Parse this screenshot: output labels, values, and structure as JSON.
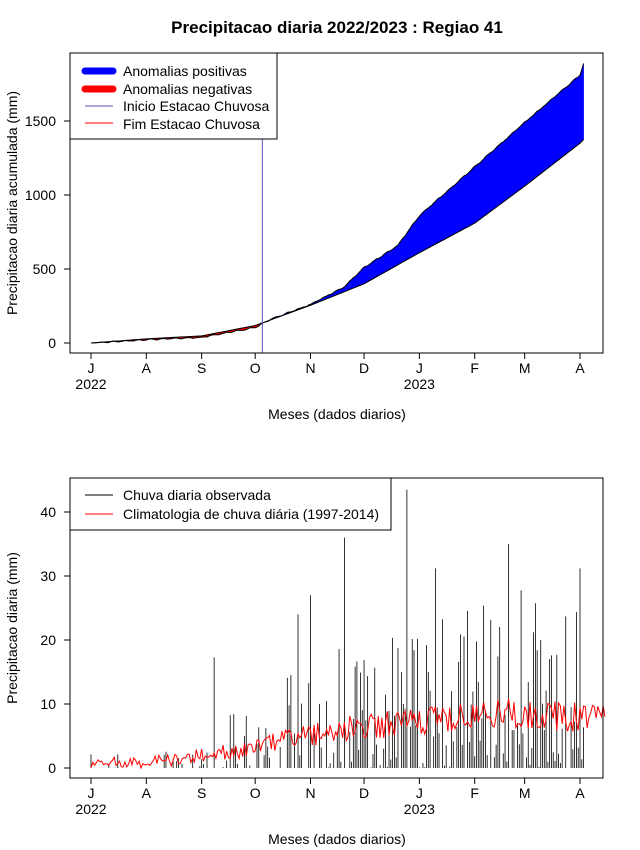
{
  "title": "Precipitacao diaria 2022/2023 : Regiao 41",
  "months": [
    "J",
    "A",
    "S",
    "O",
    "N",
    "D",
    "J",
    "F",
    "M",
    "A"
  ],
  "years": [
    "2022",
    "2023"
  ],
  "chart_data": [
    {
      "type": "area",
      "xlabel": "Meses (dados diarios)",
      "ylabel": "Precipitacao diaria acumulada (mm)",
      "ylim": [
        0,
        1850
      ],
      "yticks": [
        0,
        500,
        1000,
        1500
      ],
      "legend": {
        "position": "top-left",
        "entries": [
          "Anomalias positivas",
          "Anomalias negativas",
          "Inicio Estacao Chuvosa",
          "Fim Estacao Chuvosa"
        ]
      },
      "colors": {
        "positive": "#0000ff",
        "negative": "#ff0000",
        "onset": "#5555bb",
        "end": "#ff0000"
      },
      "rainy_season_start": "2022-10-05",
      "date_range": [
        "2022-07-01",
        "2023-04-15"
      ],
      "observed_cumulative": [
        {
          "date": "2022-07-01",
          "value": 0
        },
        {
          "date": "2022-08-01",
          "value": 22
        },
        {
          "date": "2022-09-01",
          "value": 38
        },
        {
          "date": "2022-10-01",
          "value": 105
        },
        {
          "date": "2022-10-10",
          "value": 162
        },
        {
          "date": "2022-11-01",
          "value": 260
        },
        {
          "date": "2022-11-20",
          "value": 380
        },
        {
          "date": "2022-12-01",
          "value": 510
        },
        {
          "date": "2022-12-20",
          "value": 660
        },
        {
          "date": "2023-01-01",
          "value": 860
        },
        {
          "date": "2023-02-01",
          "value": 1190
        },
        {
          "date": "2023-03-01",
          "value": 1490
        },
        {
          "date": "2023-04-01",
          "value": 1810
        },
        {
          "date": "2023-04-03",
          "value": 1890
        }
      ],
      "climatology_cumulative": [
        {
          "date": "2022-07-01",
          "value": 0
        },
        {
          "date": "2022-08-01",
          "value": 28
        },
        {
          "date": "2022-09-01",
          "value": 48
        },
        {
          "date": "2022-10-01",
          "value": 118
        },
        {
          "date": "2022-11-01",
          "value": 255
        },
        {
          "date": "2022-12-01",
          "value": 400
        },
        {
          "date": "2023-01-01",
          "value": 610
        },
        {
          "date": "2023-02-01",
          "value": 810
        },
        {
          "date": "2023-03-01",
          "value": 1060
        },
        {
          "date": "2023-04-01",
          "value": 1350
        },
        {
          "date": "2023-04-03",
          "value": 1375
        }
      ]
    },
    {
      "type": "line",
      "xlabel": "Meses (dados diarios)",
      "ylabel": "Precipitacao diaria (mm)",
      "ylim": [
        0,
        45
      ],
      "yticks": [
        0,
        10,
        20,
        30,
        40
      ],
      "legend": {
        "position": "top-left",
        "entries": [
          "Chuva diaria observada",
          "Climatologia de chuva diária (1997-2014)"
        ]
      },
      "colors": {
        "observed": "#000000",
        "climatology": "#ff0000"
      },
      "date_range": [
        "2022-07-01",
        "2023-04-15"
      ],
      "notable_observed_peaks": [
        {
          "date": "2022-09-08",
          "value": 17.3
        },
        {
          "date": "2022-10-25",
          "value": 24
        },
        {
          "date": "2022-11-01",
          "value": 27
        },
        {
          "date": "2022-11-20",
          "value": 36
        },
        {
          "date": "2022-12-25",
          "value": 43.5
        },
        {
          "date": "2023-01-10",
          "value": 31.2
        },
        {
          "date": "2023-02-20",
          "value": 35
        },
        {
          "date": "2023-04-01",
          "value": 31.2
        }
      ],
      "climatology_monthly_mean": [
        {
          "month": "J",
          "value": 0.8
        },
        {
          "month": "A",
          "value": 0.8
        },
        {
          "month": "S",
          "value": 1.8
        },
        {
          "month": "O",
          "value": 3.2
        },
        {
          "month": "N",
          "value": 5.2
        },
        {
          "month": "D",
          "value": 6.5
        },
        {
          "month": "J",
          "value": 7.2
        },
        {
          "month": "F",
          "value": 8.0
        },
        {
          "month": "M",
          "value": 8.8
        },
        {
          "month": "A",
          "value": 7.8
        }
      ]
    }
  ]
}
